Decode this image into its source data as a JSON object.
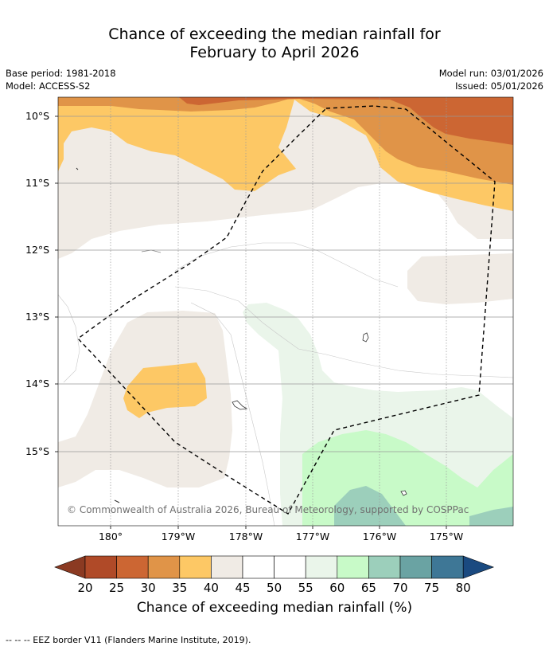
{
  "title_line1": "Chance of exceeding the median rainfall for",
  "title_line2": "February to April 2026",
  "meta": {
    "base_period": "Base period: 1981-2018",
    "model": "Model: ACCESS-S2",
    "model_run": "Model run: 03/01/2026",
    "issued": "Issued: 05/01/2026"
  },
  "map": {
    "lat_labels": [
      "10°S",
      "11°S",
      "12°S",
      "13°S",
      "14°S",
      "15°S"
    ],
    "lon_labels": [
      "180°",
      "179°W",
      "178°W",
      "177°W",
      "176°W",
      "175°W"
    ],
    "copyright": "© Commonwealth of Australia 2026, Bureau of Meteorology, supported by COSPPac"
  },
  "colorbar": {
    "ticks": [
      "20",
      "25",
      "30",
      "35",
      "40",
      "45",
      "50",
      "55",
      "60",
      "65",
      "70",
      "75",
      "80"
    ],
    "colors": [
      "#8b3a22",
      "#b04a28",
      "#cc6633",
      "#e09448",
      "#fdc865",
      "#f0ebe5",
      "#ffffff",
      "#ffffff",
      "#eaf5ea",
      "#c8fac8",
      "#9ccfbb",
      "#6aa3a3",
      "#3e7796",
      "#1a4a80"
    ],
    "title": "Chance of exceeding median rainfall (%)"
  },
  "footer": "--  --  -- EEZ border V11 (Flanders Marine Institute, 2019)."
}
